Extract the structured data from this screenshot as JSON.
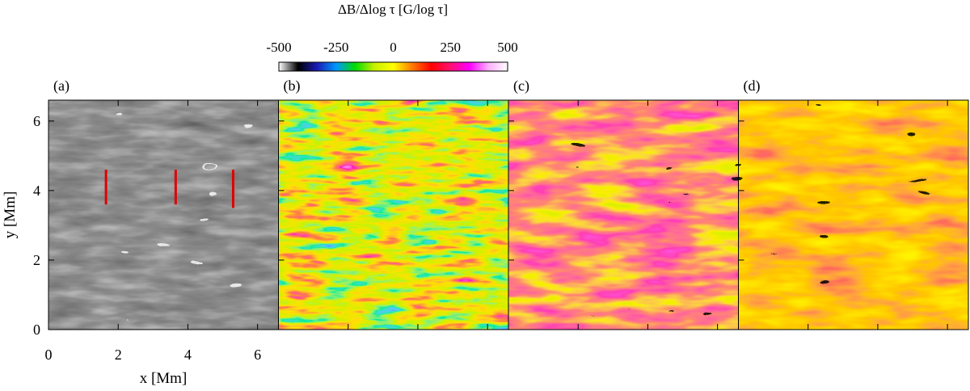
{
  "chart_data": {
    "type": "heatmap",
    "colorbar": {
      "title": "ΔB/Δlog τ [G/log τ]",
      "min": -500,
      "max": 500,
      "ticks": [
        -500,
        -250,
        0,
        250,
        500
      ],
      "tick_labels": [
        "-500",
        "-250",
        "0",
        "250",
        "500"
      ],
      "colormap": [
        "#ffffff",
        "#000000",
        "#1a1ab4",
        "#0096ff",
        "#00dc00",
        "#c8f000",
        "#ffff00",
        "#ff7a00",
        "#ff0000",
        "#ff1070",
        "#ff00ff",
        "#ffb0ff",
        "#ffffff"
      ]
    },
    "xlabel": "x [Mm]",
    "ylabel": "y [Mm]",
    "xlim": [
      0,
      6.6
    ],
    "ylim": [
      0,
      6.6
    ],
    "x_ticks": [
      0,
      2,
      4,
      6
    ],
    "y_ticks": [
      0,
      2,
      4,
      6
    ],
    "x_tick_labels": [
      "0",
      "2",
      "4",
      "6"
    ],
    "y_tick_labels": [
      "0",
      "2",
      "4",
      "6"
    ],
    "panels": [
      {
        "label": "(a)",
        "kind": "grayscale continuum with contours",
        "contour_color": "#ffffff"
      },
      {
        "label": "(b)",
        "kind": "field gradient map"
      },
      {
        "label": "(c)",
        "kind": "field gradient map with contours",
        "contour_color": "#000000"
      },
      {
        "label": "(d)",
        "kind": "field gradient map with contours",
        "contour_color": "#000000"
      }
    ],
    "markers": [
      {
        "panel": "(a)",
        "x": 1.65,
        "y_start": 3.6,
        "y_end": 4.6,
        "color": "#e00000"
      },
      {
        "panel": "(a)",
        "x": 3.65,
        "y_start": 3.6,
        "y_end": 4.6,
        "color": "#e00000"
      },
      {
        "panel": "(a)",
        "x": 5.3,
        "y_start": 3.5,
        "y_end": 4.6,
        "color": "#e00000"
      }
    ]
  }
}
